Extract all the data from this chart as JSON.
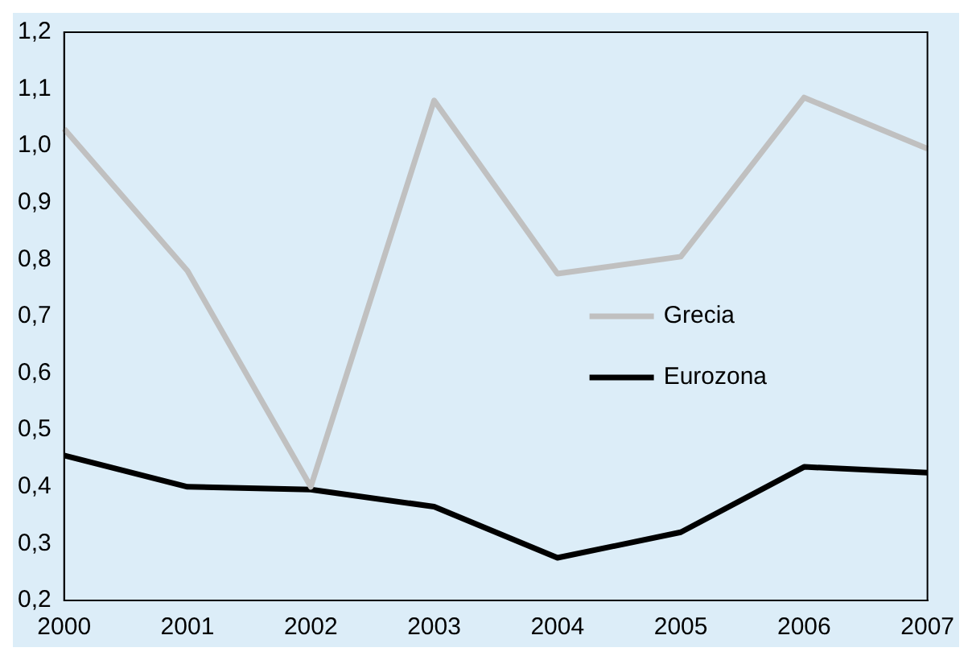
{
  "chart_data": {
    "type": "line",
    "categories": [
      "2000",
      "2001",
      "2002",
      "2003",
      "2004",
      "2005",
      "2006",
      "2007"
    ],
    "series": [
      {
        "name": "Grecia",
        "color": "#c0c0c0",
        "values": [
          1.03,
          0.78,
          0.4,
          1.08,
          0.775,
          0.805,
          1.085,
          0.995
        ]
      },
      {
        "name": "Eurozona",
        "color": "#000000",
        "values": [
          0.455,
          0.4,
          0.395,
          0.365,
          0.275,
          0.32,
          0.435,
          0.425
        ]
      }
    ],
    "ylim": [
      0.2,
      1.2
    ],
    "yticks": [
      {
        "value": 0.2,
        "label": "0,2"
      },
      {
        "value": 0.3,
        "label": "0,3"
      },
      {
        "value": 0.4,
        "label": "0,4"
      },
      {
        "value": 0.5,
        "label": "0,5"
      },
      {
        "value": 0.6,
        "label": "0,6"
      },
      {
        "value": 0.7,
        "label": "0,7"
      },
      {
        "value": 0.8,
        "label": "0,8"
      },
      {
        "value": 0.9,
        "label": "0,9"
      },
      {
        "value": 1.0,
        "label": "1,0"
      },
      {
        "value": 1.1,
        "label": "1,1"
      },
      {
        "value": 1.2,
        "label": "1,2"
      }
    ],
    "grid": false,
    "legend": "right",
    "marker": "none",
    "line_style": "solid"
  }
}
